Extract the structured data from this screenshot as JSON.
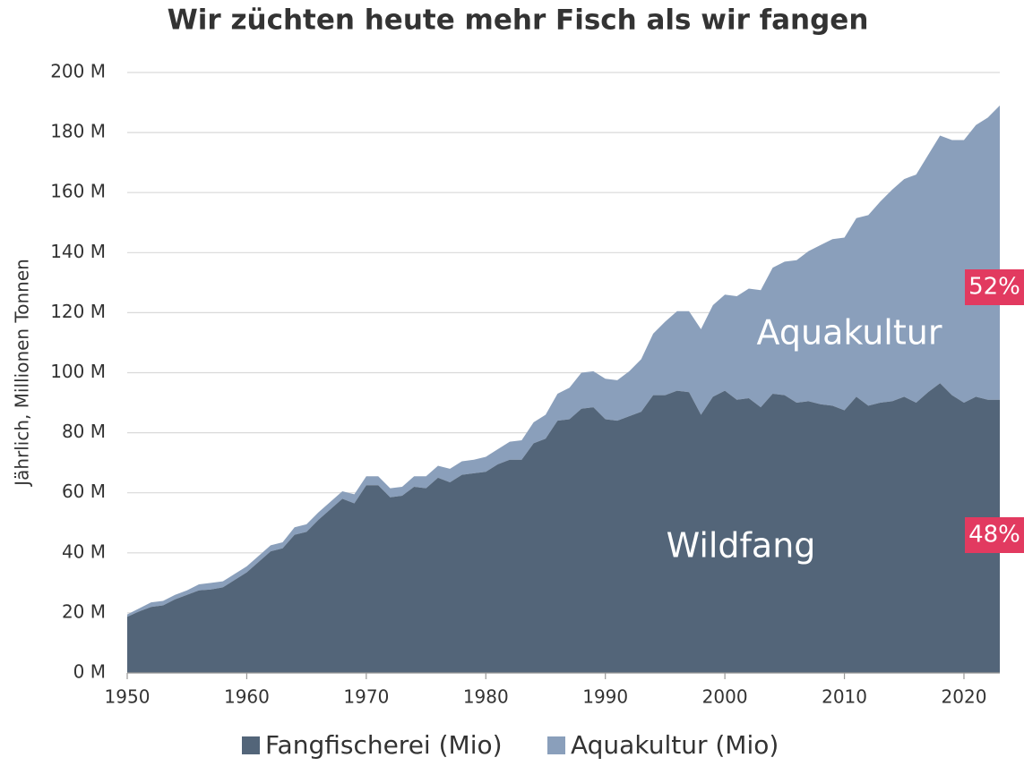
{
  "chart_data": {
    "type": "stacked_area",
    "title": "Wir züchten heute mehr Fisch als wir fangen",
    "y_label": "Jährlich, Millionen Tonnen",
    "x": [
      1950,
      1951,
      1952,
      1953,
      1954,
      1955,
      1956,
      1957,
      1958,
      1959,
      1960,
      1961,
      1962,
      1963,
      1964,
      1965,
      1966,
      1967,
      1968,
      1969,
      1970,
      1971,
      1972,
      1973,
      1974,
      1975,
      1976,
      1977,
      1978,
      1979,
      1980,
      1981,
      1982,
      1983,
      1984,
      1985,
      1986,
      1987,
      1988,
      1989,
      1990,
      1991,
      1992,
      1993,
      1994,
      1995,
      1996,
      1997,
      1998,
      1999,
      2000,
      2001,
      2002,
      2003,
      2004,
      2005,
      2006,
      2007,
      2008,
      2009,
      2010,
      2011,
      2012,
      2013,
      2014,
      2015,
      2016,
      2017,
      2018,
      2019,
      2020,
      2021,
      2022,
      2023
    ],
    "series": [
      {
        "name": "Fangfischerei (Mio)",
        "color": "#536579",
        "values": [
          18.7,
          20.5,
          22,
          22.5,
          24.5,
          26,
          27.5,
          27.8,
          28.5,
          31,
          33.5,
          37,
          40.5,
          41.5,
          46,
          47,
          51,
          54.5,
          58,
          56.5,
          62.5,
          62.5,
          58.5,
          59,
          62,
          61.5,
          65,
          63.5,
          66,
          66.5,
          67,
          69.5,
          71,
          71,
          76.5,
          78,
          84,
          84.5,
          88,
          88.5,
          84.5,
          84,
          85.5,
          87,
          92.5,
          92.5,
          94,
          93.5,
          86,
          92,
          94,
          91,
          91.5,
          88.5,
          93,
          92.5,
          90,
          90.5,
          89.5,
          89,
          87.5,
          92,
          89,
          90,
          90.5,
          92,
          90,
          93.5,
          96.5,
          92.5,
          90,
          92,
          91,
          91
        ]
      },
      {
        "name": "Aquakultur (Mio)",
        "color": "#8a9fbb",
        "values": [
          0.8,
          1,
          1.5,
          1.5,
          1.5,
          1.5,
          2,
          2.2,
          2,
          2,
          2,
          2,
          2,
          2,
          2.5,
          2.5,
          2.5,
          2.5,
          2.5,
          3,
          3,
          3,
          3,
          3,
          3.5,
          4,
          4,
          4.5,
          4.5,
          4.5,
          5,
          5,
          6,
          6.5,
          7,
          8,
          9,
          10.5,
          12,
          12,
          13.5,
          13.5,
          15,
          17.5,
          20.5,
          24.5,
          26.5,
          27,
          28.5,
          30.5,
          32,
          34.5,
          36.5,
          39,
          42,
          44.5,
          47.5,
          50,
          53,
          55.5,
          57.5,
          59.5,
          63.5,
          67,
          70.5,
          72.5,
          76,
          79,
          82.5,
          85,
          87.5,
          90.5,
          94,
          98
        ]
      }
    ],
    "xlim": [
      1950,
      2023
    ],
    "xticks": [
      1950,
      1960,
      1970,
      1980,
      1990,
      2000,
      2010,
      2020
    ],
    "ylim": [
      0,
      200
    ],
    "yticks": [
      {
        "value": 0,
        "label": "0 M"
      },
      {
        "value": 20,
        "label": "20 M"
      },
      {
        "value": 40,
        "label": "40 M"
      },
      {
        "value": 60,
        "label": "60 M"
      },
      {
        "value": 80,
        "label": "80 M"
      },
      {
        "value": 100,
        "label": "100 M"
      },
      {
        "value": 120,
        "label": "120 M"
      },
      {
        "value": 140,
        "label": "140 M"
      },
      {
        "value": 160,
        "label": "160 M"
      },
      {
        "value": 180,
        "label": "180 M"
      },
      {
        "value": 200,
        "label": "200 M"
      }
    ],
    "grid": true,
    "legend": "bottom",
    "annotations": [
      {
        "text": "Aquakultur",
        "series": 1
      },
      {
        "text": "Wildfang",
        "series": 0
      },
      {
        "text": "52%",
        "series": 1
      },
      {
        "text": "48%",
        "series": 0
      }
    ],
    "annotation_badge_color": "#e23a60"
  }
}
